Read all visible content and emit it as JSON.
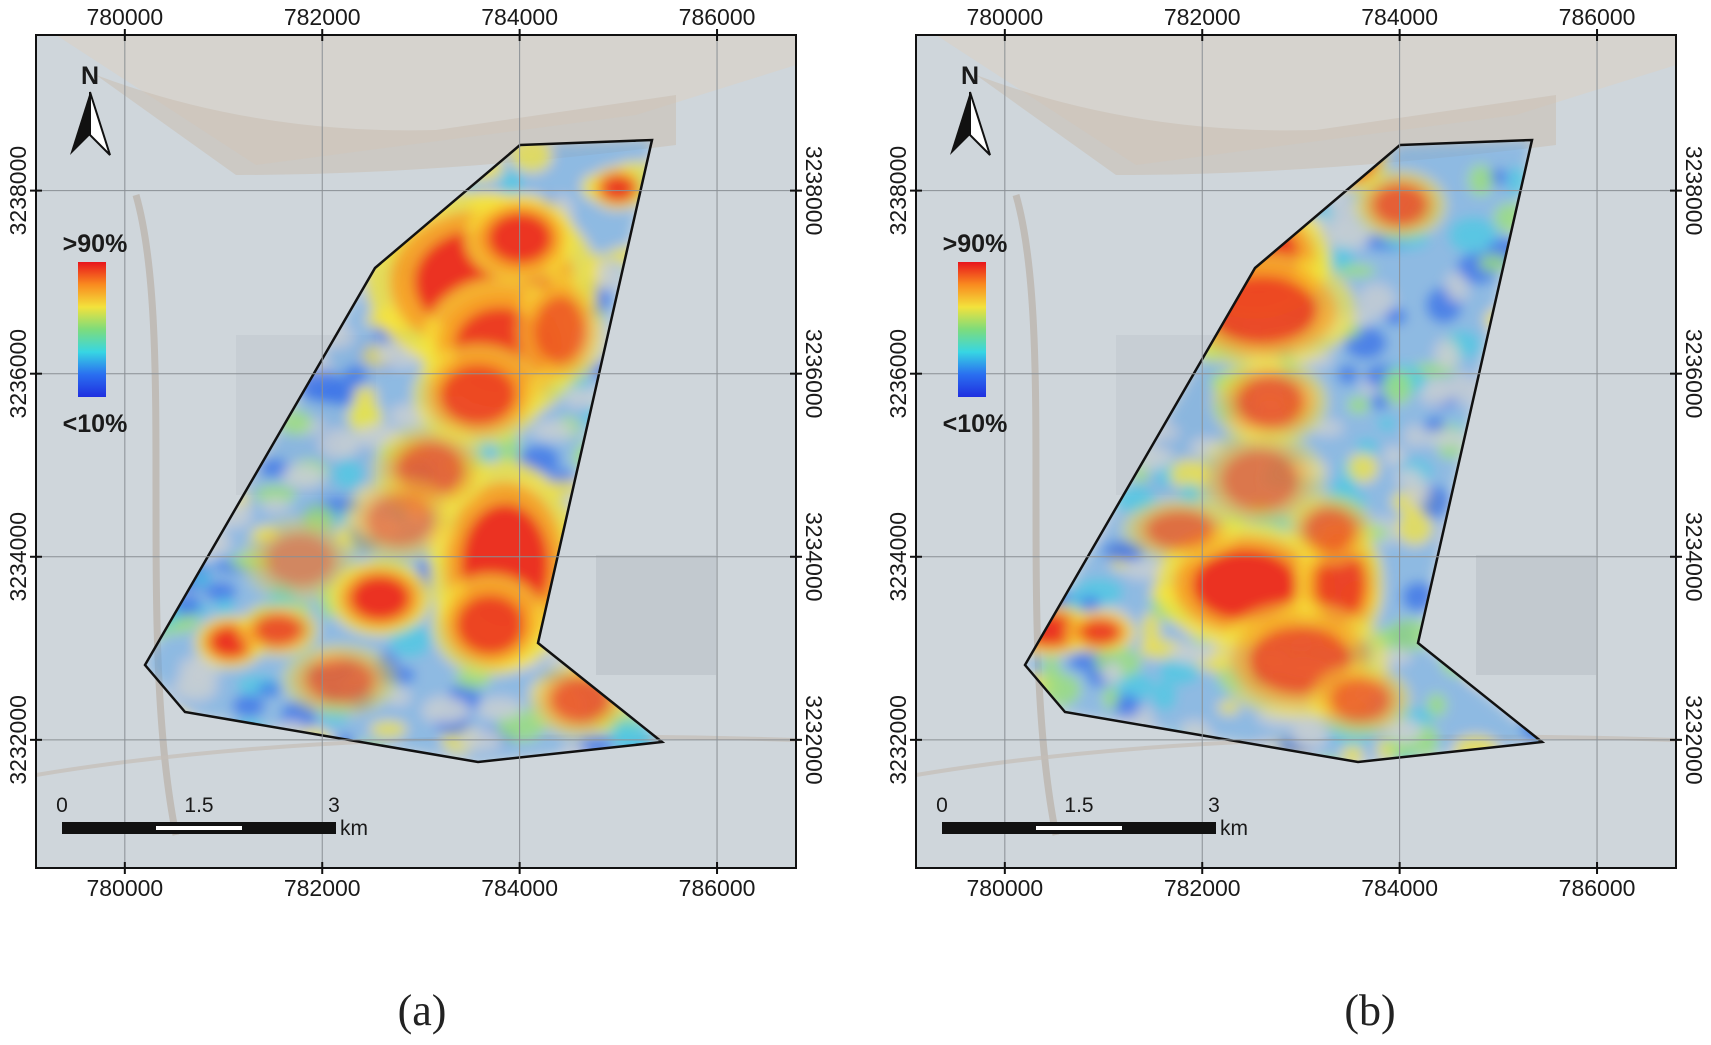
{
  "panels": [
    {
      "id": "a",
      "caption": "(a)"
    },
    {
      "id": "b",
      "caption": "(b)"
    }
  ],
  "axes": {
    "easting_ticks": [
      "780000",
      "782000",
      "784000",
      "786000"
    ],
    "northing_ticks": [
      "3238000",
      "3236000",
      "3234000",
      "3232000"
    ]
  },
  "north_arrow": {
    "label": "N",
    "icon": "north-arrow-icon"
  },
  "legend": {
    "high_label": ">90%",
    "low_label": "<10%",
    "colors": [
      "#e8141c",
      "#f98a1f",
      "#f3e23c",
      "#7ddc7c",
      "#37d6e3",
      "#2a6ff0",
      "#1f2fe0"
    ]
  },
  "scale_bar": {
    "labels": [
      "0",
      "1.5",
      "3"
    ],
    "unit": "km"
  },
  "chart_data": {
    "type": "heatmap",
    "title": "",
    "xlabel": "",
    "ylabel": "",
    "xlim": [
      779100,
      786800
    ],
    "ylim": [
      3230600,
      3239700
    ],
    "x_ticks": [
      780000,
      782000,
      784000,
      786000
    ],
    "y_ticks": [
      3232000,
      3234000,
      3236000,
      3238000
    ],
    "color_scale": {
      "min_label": "<10%",
      "max_label": ">90%"
    },
    "panels": [
      "(a)",
      "(b)"
    ]
  }
}
